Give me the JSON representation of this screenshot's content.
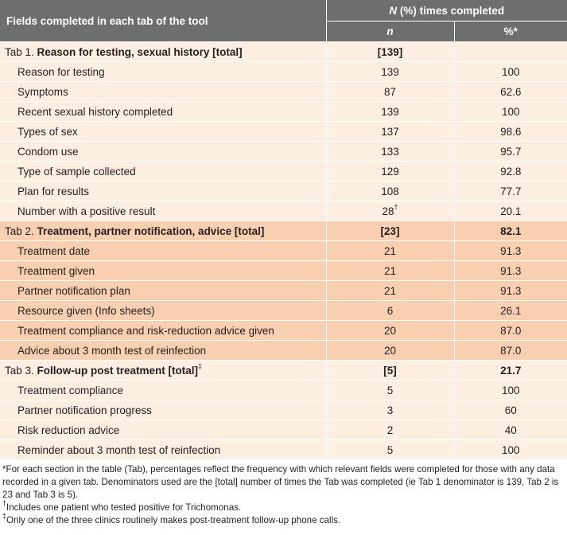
{
  "header": {
    "col1": "Fields completed in each tab of the tool",
    "group_prefix": "N",
    "group_suffix": " (%) times completed",
    "n": "n",
    "pct": "%*"
  },
  "sections": [
    {
      "title_prefix": "Tab 1. ",
      "title_bold": "Reason for testing, sexual history [total]",
      "title_sup": "",
      "n": "[139]",
      "pct": "",
      "shade": "light",
      "rows": [
        {
          "label": "Reason for testing",
          "n": "139",
          "n_sup": "",
          "pct": "100"
        },
        {
          "label": "Symptoms",
          "n": "87",
          "n_sup": "",
          "pct": "62.6"
        },
        {
          "label": "Recent sexual history completed",
          "n": "139",
          "n_sup": "",
          "pct": "100"
        },
        {
          "label": "Types of sex",
          "n": "137",
          "n_sup": "",
          "pct": "98.6"
        },
        {
          "label": "Condom use",
          "n": "133",
          "n_sup": "",
          "pct": "95.7"
        },
        {
          "label": "Type of sample collected",
          "n": "129",
          "n_sup": "",
          "pct": "92.8"
        },
        {
          "label": "Plan for results",
          "n": "108",
          "n_sup": "",
          "pct": "77.7"
        },
        {
          "label": "Number with a positive result",
          "n": "28",
          "n_sup": "†",
          "pct": "20.1"
        }
      ]
    },
    {
      "title_prefix": "Tab 2. ",
      "title_bold": "Treatment, partner notification, advice [total]",
      "title_sup": "",
      "n": "[23]",
      "pct": "82.1",
      "shade": "dark",
      "rows": [
        {
          "label": "Treatment date",
          "n": "21",
          "n_sup": "",
          "pct": "91.3"
        },
        {
          "label": "Treatment given",
          "n": "21",
          "n_sup": "",
          "pct": "91.3"
        },
        {
          "label": "Partner notification plan",
          "n": "21",
          "n_sup": "",
          "pct": "91.3"
        },
        {
          "label": "Resource given (Info sheets)",
          "n": "6",
          "n_sup": "",
          "pct": "26.1"
        },
        {
          "label": "Treatment compliance and risk-reduction advice given",
          "n": "20",
          "n_sup": "",
          "pct": "87.0"
        },
        {
          "label": "Advice about 3 month test of reinfection",
          "n": "20",
          "n_sup": "",
          "pct": "87.0"
        }
      ]
    },
    {
      "title_prefix": "Tab 3. ",
      "title_bold": "Follow-up post treatment [total]",
      "title_sup": "‡",
      "n": "[5]",
      "pct": "21.7",
      "shade": "light",
      "rows": [
        {
          "label": "Treatment compliance",
          "n": "5",
          "n_sup": "",
          "pct": "100"
        },
        {
          "label": "Partner notification progress",
          "n": "3",
          "n_sup": "",
          "pct": "60"
        },
        {
          "label": "Risk reduction advice",
          "n": "2",
          "n_sup": "",
          "pct": "40"
        },
        {
          "label": "Reminder about 3 month test of reinfection",
          "n": "5",
          "n_sup": "",
          "pct": "100"
        }
      ]
    }
  ],
  "footnotes": {
    "star": "*For each section in the table (Tab), percentages reflect the frequency with which relevant fields were completed for those with any data recorded in a given tab. Denominators used are the [total] number of times the Tab was completed (ie Tab 1 denominator is 139, Tab 2 is 23 and Tab 3 is 5).",
    "dagger_mark": "†",
    "dagger": "Includes one patient who tested positive for Trichomonas.",
    "ddagger_mark": "‡",
    "ddagger": "Only one of the three clinics routinely makes post-treatment follow-up phone calls."
  },
  "colors": {
    "header": "#6d6e70",
    "light_row": "#fdeee2",
    "dark_row": "#f8cfb0"
  }
}
